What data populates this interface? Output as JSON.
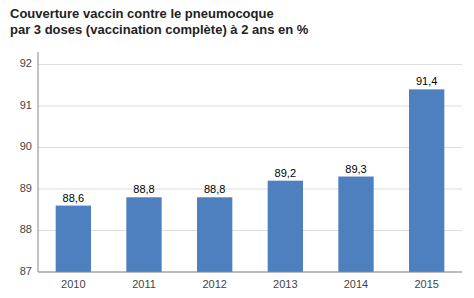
{
  "chart_data": {
    "type": "bar",
    "title": "Couverture vaccin contre le pneumocoque\npar 3 doses (vaccination complète) à 2 ans en %",
    "categories": [
      "2010",
      "2011",
      "2012",
      "2013",
      "2014",
      "2015"
    ],
    "values": [
      88.6,
      88.8,
      88.8,
      89.2,
      89.3,
      91.4
    ],
    "value_labels": [
      "88,6",
      "88,8",
      "88,8",
      "89,2",
      "89,3",
      "91,4"
    ],
    "color": "#4e7fbf",
    "ylim": [
      87,
      92.3
    ],
    "yticks": [
      87,
      88,
      89,
      90,
      91,
      92
    ],
    "grid": true,
    "data_labels": true
  }
}
